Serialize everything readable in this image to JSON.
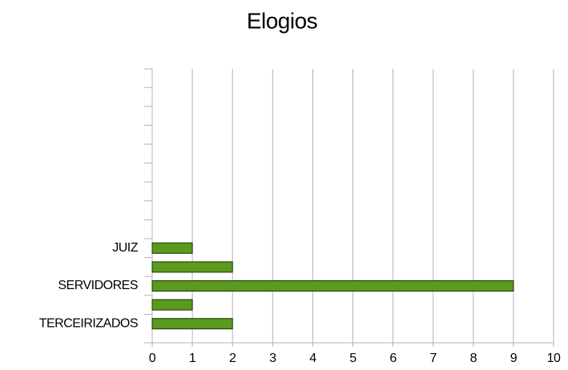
{
  "chart_data": {
    "type": "barh",
    "title": "Elogios",
    "categories": [
      null,
      null,
      null,
      null,
      null,
      null,
      null,
      null,
      null,
      "JUIZ",
      null,
      "SERVIDORES",
      null,
      "TERCEIRIZADOS"
    ],
    "values": [
      null,
      null,
      null,
      null,
      null,
      null,
      null,
      null,
      null,
      1,
      2,
      9,
      1,
      2
    ],
    "color": "#5a9a1e",
    "xlim": [
      0,
      10
    ],
    "xticks": [
      0,
      1,
      2,
      3,
      4,
      5,
      6,
      7,
      8,
      9,
      10
    ],
    "grid": true
  }
}
